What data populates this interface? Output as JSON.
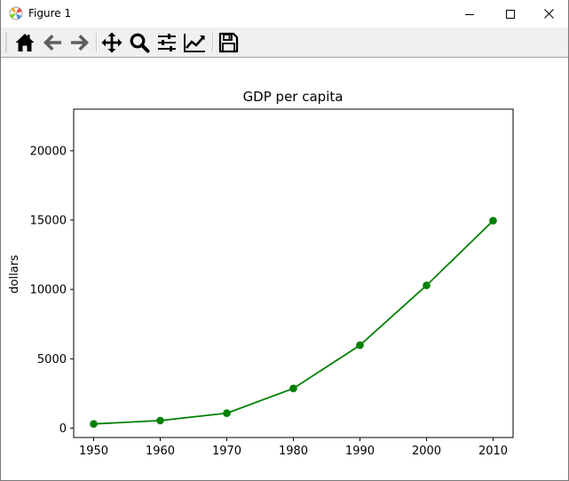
{
  "window": {
    "title": "Figure 1"
  },
  "toolbar": {
    "buttons": [
      {
        "name": "home-icon",
        "tooltip": "Home"
      },
      {
        "name": "back-icon",
        "tooltip": "Back"
      },
      {
        "name": "forward-icon",
        "tooltip": "Forward"
      },
      {
        "name": "pan-icon",
        "tooltip": "Pan"
      },
      {
        "name": "zoom-icon",
        "tooltip": "Zoom"
      },
      {
        "name": "subplots-icon",
        "tooltip": "Subplots"
      },
      {
        "name": "edit-curves-icon",
        "tooltip": "Customize"
      },
      {
        "name": "save-icon",
        "tooltip": "Save"
      }
    ]
  },
  "chart_data": {
    "type": "line",
    "title": "GDP per capita",
    "xlabel": "",
    "ylabel": "dollars",
    "x": [
      1950,
      1960,
      1970,
      1980,
      1990,
      2000,
      2010
    ],
    "series": [
      {
        "values": [
          300,
          543,
          1075,
          2862,
          5979,
          10289,
          14958
        ],
        "color": "#008000",
        "marker": "circle",
        "line_style": "solid"
      }
    ],
    "x_ticks": [
      1950,
      1960,
      1970,
      1980,
      1990,
      2000,
      2010
    ],
    "y_ticks": [
      0,
      5000,
      10000,
      15000,
      20000
    ],
    "xlim": [
      1947,
      2013
    ],
    "ylim": [
      -680,
      23000
    ],
    "grid": false,
    "legend": "none"
  }
}
